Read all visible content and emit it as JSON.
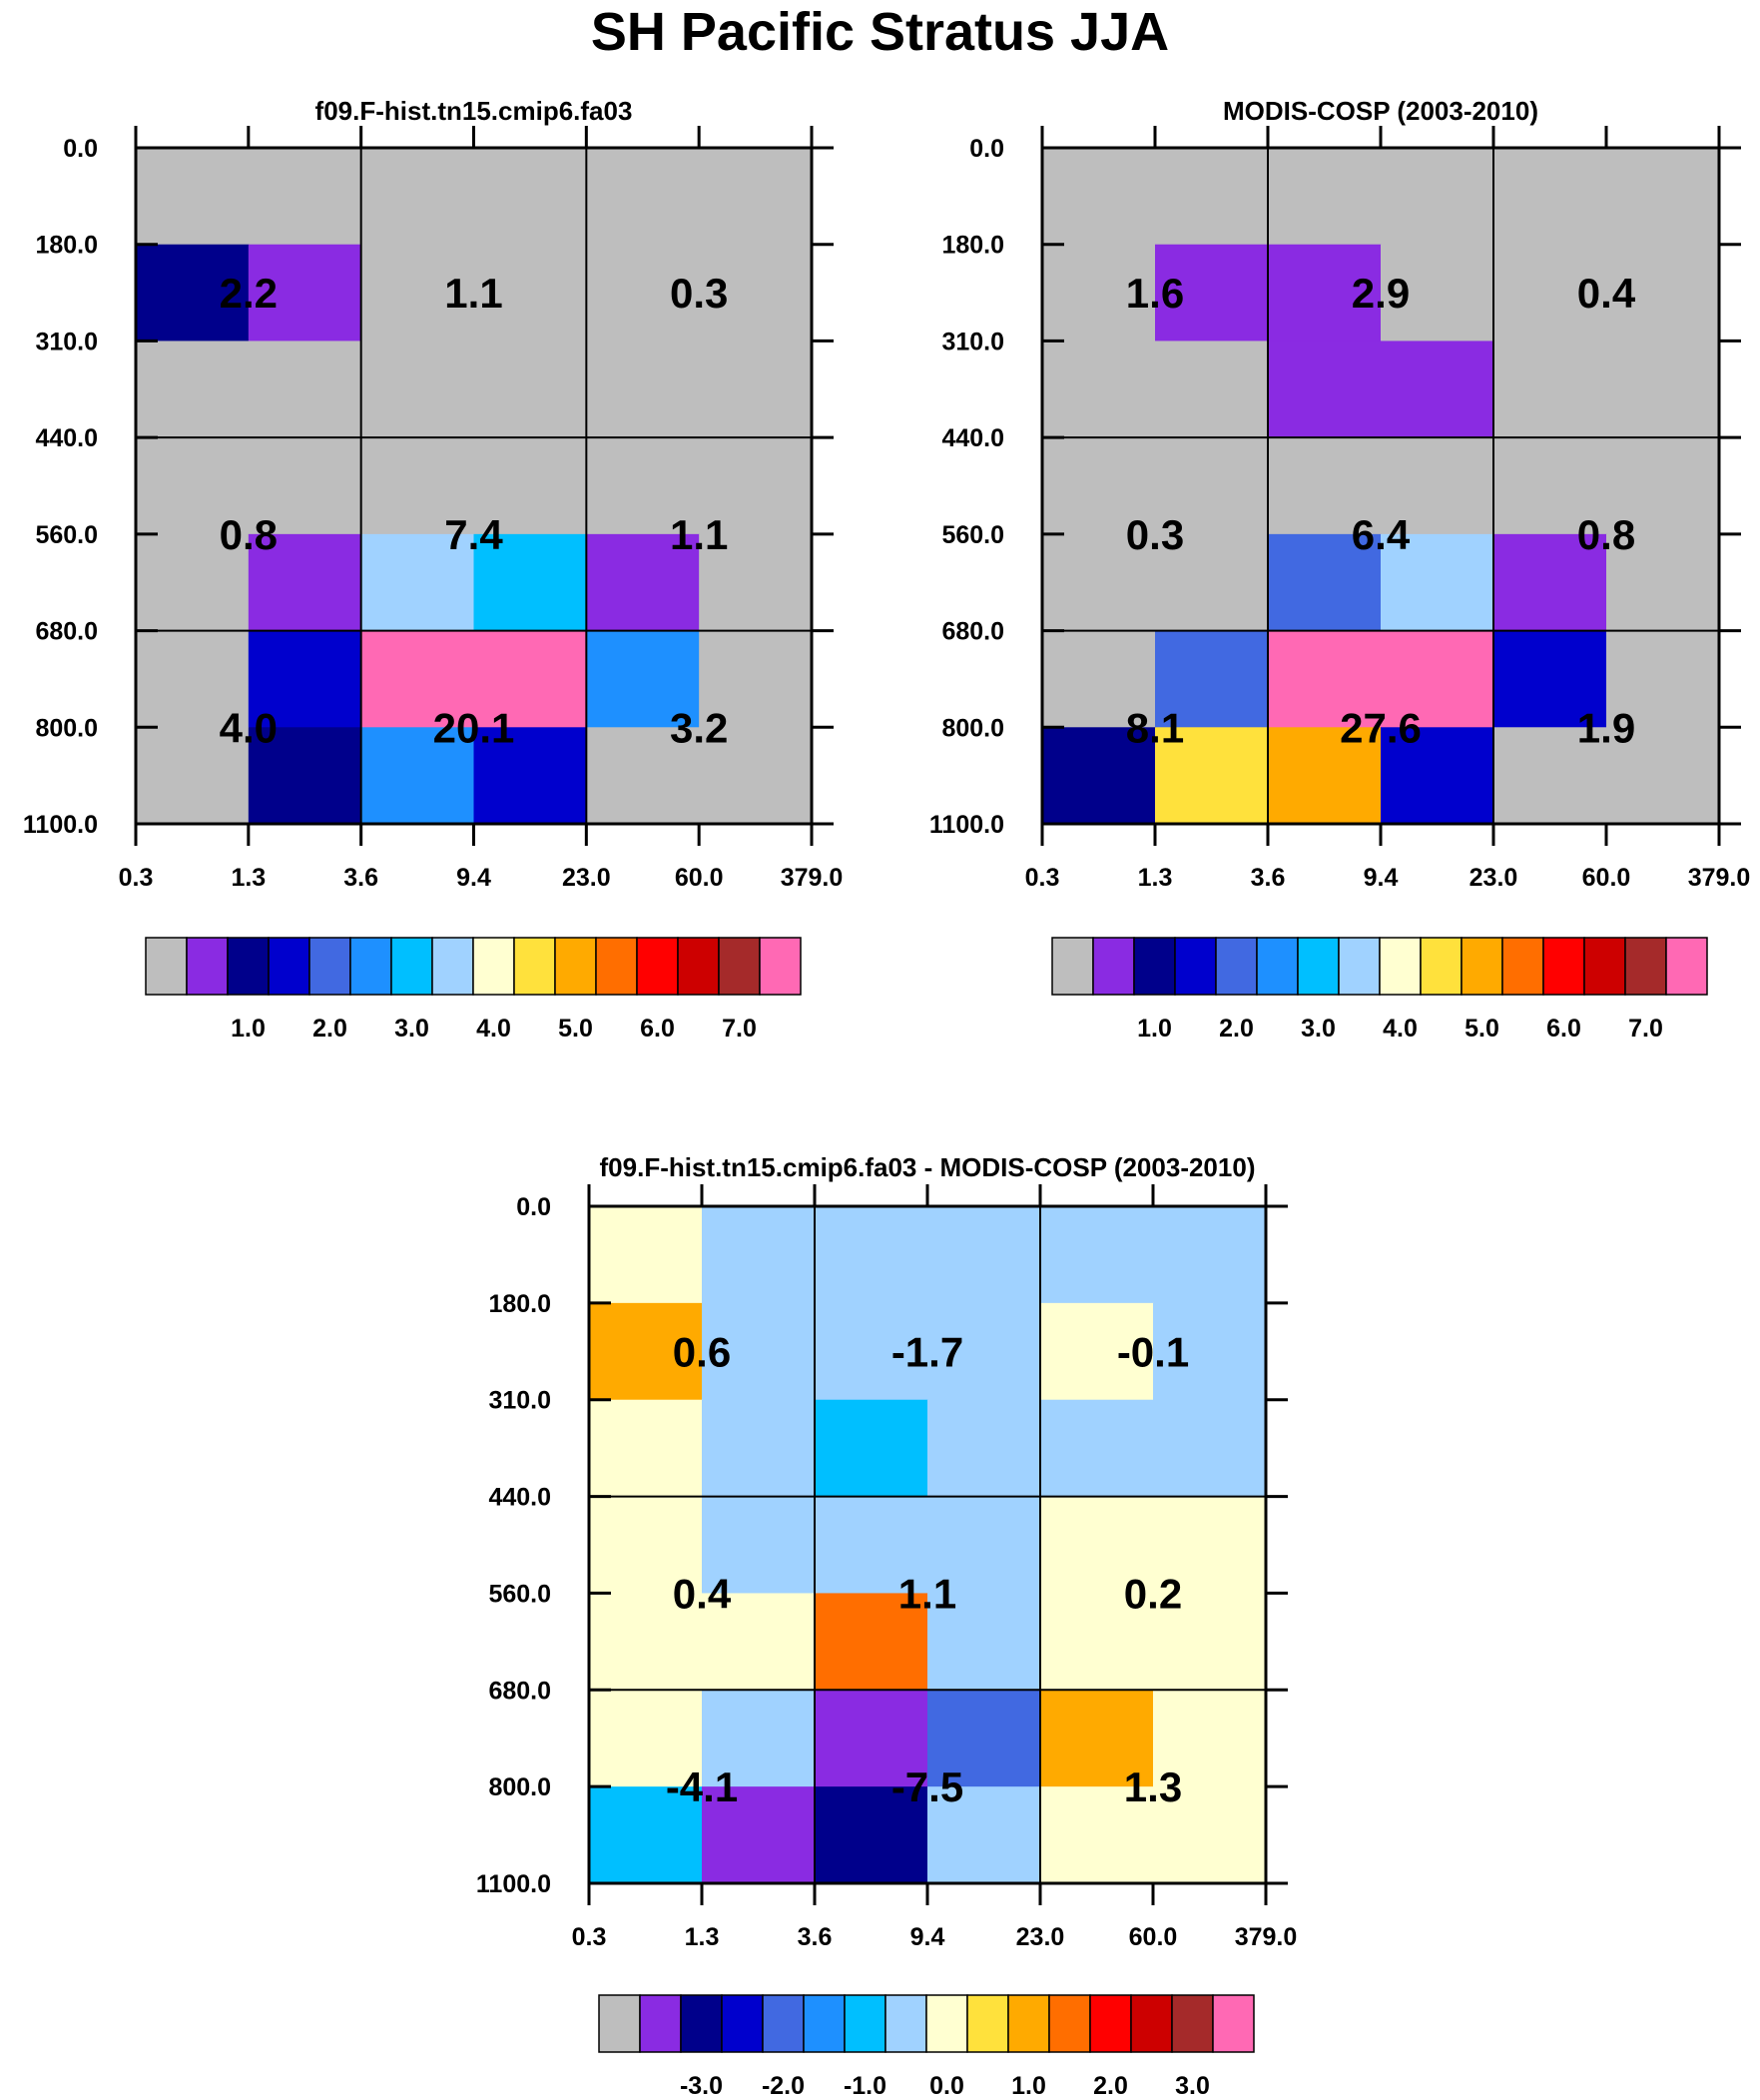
{
  "title": "SH Pacific Stratus JJA",
  "colors": {
    "model": [
      "#bebebe",
      "#8a2be2",
      "#00008b",
      "#0000cd",
      "#4169e1",
      "#1e90ff",
      "#00bfff",
      "#a0d2ff",
      "#ffffd1",
      "#ffe13c",
      "#ffaa00",
      "#ff6e00",
      "#ff0000",
      "#cd0000",
      "#a52a2a",
      "#ff69b4"
    ],
    "diff": [
      "#bebebe",
      "#8a2be2",
      "#00008b",
      "#0000cd",
      "#4169e1",
      "#1e90ff",
      "#00bfff",
      "#a0d2ff",
      "#ffffd1",
      "#ffe13c",
      "#ffaa00",
      "#ff6e00",
      "#ff0000",
      "#cd0000",
      "#a52a2a",
      "#ff69b4"
    ]
  },
  "chart_data": [
    {
      "type": "heatmap",
      "title": "f09.F-hist.tn15.cmip6.fa03",
      "x_tick_labels": [
        "0.3",
        "1.3",
        "3.6",
        "9.4",
        "23.0",
        "60.0",
        "379.0"
      ],
      "y_tick_labels": [
        "0.0",
        "180.0",
        "310.0",
        "440.0",
        "560.0",
        "680.0",
        "800.0",
        "1100.0"
      ],
      "grid_fill_rows": [
        [
          0,
          0,
          0,
          0,
          0,
          0
        ],
        [
          2,
          1,
          0,
          0,
          0,
          0
        ],
        [
          0,
          0,
          0,
          0,
          0,
          0
        ],
        [
          0,
          0,
          0,
          0,
          0,
          0
        ],
        [
          0,
          1,
          7,
          6,
          1,
          0
        ],
        [
          0,
          3,
          15,
          15,
          5,
          0
        ],
        [
          0,
          2,
          5,
          3,
          0,
          0
        ]
      ],
      "box_values": [
        [
          "2.2",
          "1.1",
          "0.3"
        ],
        [
          "0.8",
          "7.4",
          "1.1"
        ],
        [
          "4.0",
          "20.1",
          "3.2"
        ]
      ],
      "colorbar_palette": "model",
      "colorbar_labels": [
        "1.0",
        "2.0",
        "3.0",
        "4.0",
        "5.0",
        "6.0",
        "7.0"
      ]
    },
    {
      "type": "heatmap",
      "title": "MODIS-COSP (2003-2010)",
      "x_tick_labels": [
        "0.3",
        "1.3",
        "3.6",
        "9.4",
        "23.0",
        "60.0",
        "379.0"
      ],
      "y_tick_labels": [
        "0.0",
        "180.0",
        "310.0",
        "440.0",
        "560.0",
        "680.0",
        "800.0",
        "1100.0"
      ],
      "grid_fill_rows": [
        [
          0,
          0,
          0,
          0,
          0,
          0
        ],
        [
          0,
          1,
          1,
          0,
          0,
          0
        ],
        [
          0,
          0,
          1,
          1,
          0,
          0
        ],
        [
          0,
          0,
          0,
          0,
          0,
          0
        ],
        [
          0,
          0,
          4,
          7,
          1,
          0
        ],
        [
          0,
          4,
          15,
          15,
          3,
          0
        ],
        [
          2,
          9,
          10,
          3,
          0,
          0
        ]
      ],
      "box_values": [
        [
          "1.6",
          "2.9",
          "0.4"
        ],
        [
          "0.3",
          "6.4",
          "0.8"
        ],
        [
          "8.1",
          "27.6",
          "1.9"
        ]
      ],
      "colorbar_palette": "model",
      "colorbar_labels": [
        "1.0",
        "2.0",
        "3.0",
        "4.0",
        "5.0",
        "6.0",
        "7.0"
      ]
    },
    {
      "type": "heatmap",
      "title": "f09.F-hist.tn15.cmip6.fa03 - MODIS-COSP (2003-2010)",
      "x_tick_labels": [
        "0.3",
        "1.3",
        "3.6",
        "9.4",
        "23.0",
        "60.0",
        "379.0"
      ],
      "y_tick_labels": [
        "0.0",
        "180.0",
        "310.0",
        "440.0",
        "560.0",
        "680.0",
        "800.0",
        "1100.0"
      ],
      "grid_fill_rows": [
        [
          8,
          7,
          7,
          7,
          7,
          7
        ],
        [
          10,
          7,
          7,
          7,
          8,
          7
        ],
        [
          8,
          7,
          6,
          7,
          7,
          7
        ],
        [
          8,
          7,
          7,
          7,
          8,
          8
        ],
        [
          8,
          8,
          11,
          7,
          8,
          8
        ],
        [
          8,
          7,
          1,
          4,
          10,
          8
        ],
        [
          6,
          1,
          2,
          7,
          8,
          8
        ]
      ],
      "box_values": [
        [
          "0.6",
          "-1.7",
          "-0.1"
        ],
        [
          "0.4",
          "1.1",
          "0.2"
        ],
        [
          "-4.1",
          "-7.5",
          "1.3"
        ]
      ],
      "colorbar_palette": "diff",
      "colorbar_labels": [
        "-3.0",
        "-2.0",
        "-1.0",
        "0.0",
        "1.0",
        "2.0",
        "3.0"
      ]
    }
  ]
}
